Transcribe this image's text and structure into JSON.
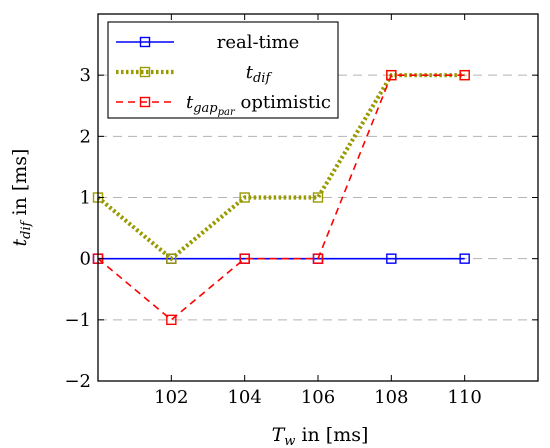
{
  "chart_data": {
    "type": "line",
    "x": [
      100,
      102,
      104,
      106,
      108,
      110
    ],
    "xlim": [
      100,
      112
    ],
    "ylim": [
      -2,
      4
    ],
    "xticks": [
      102,
      104,
      106,
      108,
      110
    ],
    "yticks": [
      -2,
      -1,
      0,
      1,
      2,
      3
    ],
    "ytick_labels": [
      "−2",
      "−1",
      "0",
      "1",
      "2",
      "3"
    ],
    "grid": "y-major dashed",
    "legend_position": "top-left",
    "xlabel": {
      "main": "T",
      "sub": "w",
      "rest": " in [ms]"
    },
    "ylabel": {
      "main": "t",
      "sub": "dif",
      "rest": " in [ms]"
    },
    "series": [
      {
        "name": "real-time",
        "legend": {
          "main": "real-time",
          "sub": "",
          "subsub": "",
          "rest": ""
        },
        "values": [
          0,
          0,
          0,
          0,
          0,
          0
        ],
        "color": "#0000ff",
        "style": "solid",
        "marker": "square"
      },
      {
        "name": "t dif",
        "legend": {
          "main": "t",
          "sub": "dif",
          "subsub": "",
          "rest": ""
        },
        "values": [
          1,
          0,
          1,
          1,
          3,
          3
        ],
        "color": "#999900",
        "style": "dotted",
        "marker": "square"
      },
      {
        "name": "t gap par optimistic",
        "legend": {
          "main": "t",
          "sub": "gap",
          "subsub": "par",
          "rest": " optimistic"
        },
        "values": [
          0,
          -1,
          0,
          0,
          3,
          3
        ],
        "color": "#ff0000",
        "style": "dashed",
        "marker": "square"
      }
    ]
  }
}
